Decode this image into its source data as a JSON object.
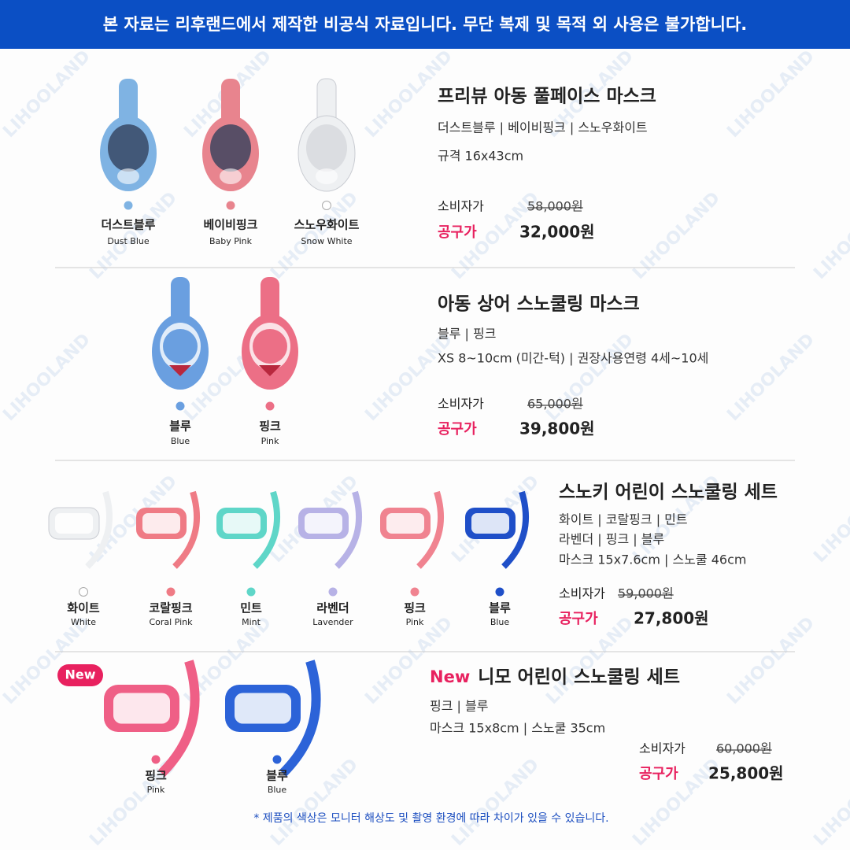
{
  "banner": "본 자료는 리후랜드에서 제작한 비공식 자료입니다. 무단 복제 및 목적 외 사용은 불가합니다.",
  "watermark": "LIHOOLAND",
  "products": [
    {
      "name": "프리뷰 아동 풀페이스 마스크",
      "details": [
        "더스트블루 | 베이비핑크 | 스노우화이트",
        "규격 16x43cm"
      ],
      "consumer_label": "소비자가",
      "consumer_price": "58,000원",
      "group_label": "공구가",
      "group_price": "32,000원",
      "colors": [
        {
          "ko": "더스트블루",
          "en": "Dust Blue",
          "color": "#7fb3e3"
        },
        {
          "ko": "베이비핑크",
          "en": "Baby Pink",
          "color": "#e8848e"
        },
        {
          "ko": "스노우화이트",
          "en": "Snow White",
          "color": "#ffffff"
        }
      ]
    },
    {
      "name": "아동 상어 스노쿨링 마스크",
      "details": [
        "블루 | 핑크",
        "XS 8~10cm (미간-턱) | 권장사용연령 4세~10세"
      ],
      "consumer_label": "소비자가",
      "consumer_price": "65,000원",
      "group_label": "공구가",
      "group_price": "39,800원",
      "colors": [
        {
          "ko": "블루",
          "en": "Blue",
          "color": "#6a9fe0"
        },
        {
          "ko": "핑크",
          "en": "Pink",
          "color": "#ec6f86"
        }
      ]
    },
    {
      "name": "스노키 어린이 스노쿨링 세트",
      "details": [
        "화이트 | 코랄핑크 | 민트",
        "라벤더 | 핑크 | 블루",
        "마스크 15x7.6cm | 스노쿨 46cm"
      ],
      "consumer_label": "소비자가",
      "consumer_price": "59,000원",
      "group_label": "공구가",
      "group_price": "27,800원",
      "colors": [
        {
          "ko": "화이트",
          "en": "White",
          "color": "#ffffff"
        },
        {
          "ko": "코랄핑크",
          "en": "Coral Pink",
          "color": "#ef7b85"
        },
        {
          "ko": "민트",
          "en": "Mint",
          "color": "#5fd6c8"
        },
        {
          "ko": "라벤더",
          "en": "Lavender",
          "color": "#b7b2e6"
        },
        {
          "ko": "핑크",
          "en": "Pink",
          "color": "#f08390"
        },
        {
          "ko": "블루",
          "en": "Blue",
          "color": "#1f4fc8"
        }
      ]
    },
    {
      "badge": "New",
      "name_prefix": "New",
      "name": "니모 어린이 스노쿨링 세트",
      "details": [
        "핑크 | 블루",
        "마스크 15x8cm | 스노쿨 35cm"
      ],
      "consumer_label": "소비자가",
      "consumer_price": "60,000원",
      "group_label": "공구가",
      "group_price": "25,800원",
      "colors": [
        {
          "ko": "핑크",
          "en": "Pink",
          "color": "#ef5f86"
        },
        {
          "ko": "블루",
          "en": "Blue",
          "color": "#2c63d8"
        }
      ]
    }
  ],
  "footer": "* 제품의 색상은 모니터 해상도 및 촬영 환경에 따라 차이가 있을 수 있습니다."
}
